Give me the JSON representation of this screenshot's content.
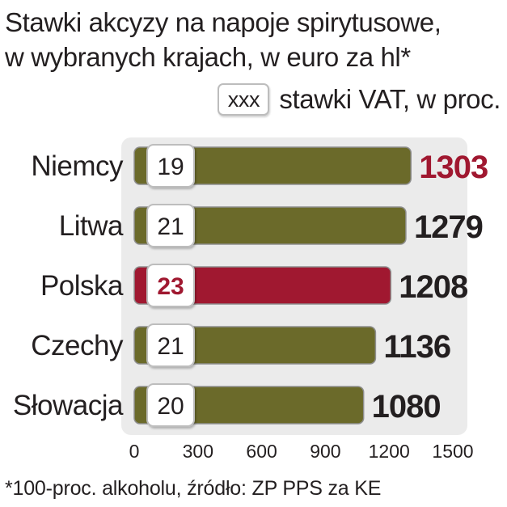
{
  "title_lines": [
    "Stawki akcyzy na napoje spirytusowe,",
    "w wybranych krajach, w euro za hl*"
  ],
  "legend": {
    "box_text": "xxx",
    "label": "stawki VAT, w proc."
  },
  "footnote": "*100-proc. alkoholu, źródło: ZP PPS za KE",
  "colors": {
    "bar": "#6b6a2a",
    "highlight_bar": "#a01830",
    "highlight_text": "#a01830",
    "value_text": "#231f20",
    "plot_background": "#ebebeb"
  },
  "chart_data": {
    "type": "bar",
    "orientation": "horizontal",
    "title": "Stawki akcyzy na napoje spirytusowe, w wybranych krajach, w euro za hl*",
    "categories": [
      "Niemcy",
      "Litwa",
      "Polska",
      "Czechy",
      "Słowacja"
    ],
    "values": [
      1303,
      1279,
      1208,
      1136,
      1080
    ],
    "vat_rates": [
      19,
      21,
      23,
      21,
      20
    ],
    "highlight": [
      "value",
      "none",
      "bar",
      "none",
      "none"
    ],
    "xlim": [
      0,
      1500
    ],
    "xticks": [
      0,
      300,
      600,
      900,
      1200,
      1500
    ],
    "xlabel": "",
    "ylabel": "",
    "grid": false,
    "legend_position": "top-right"
  }
}
